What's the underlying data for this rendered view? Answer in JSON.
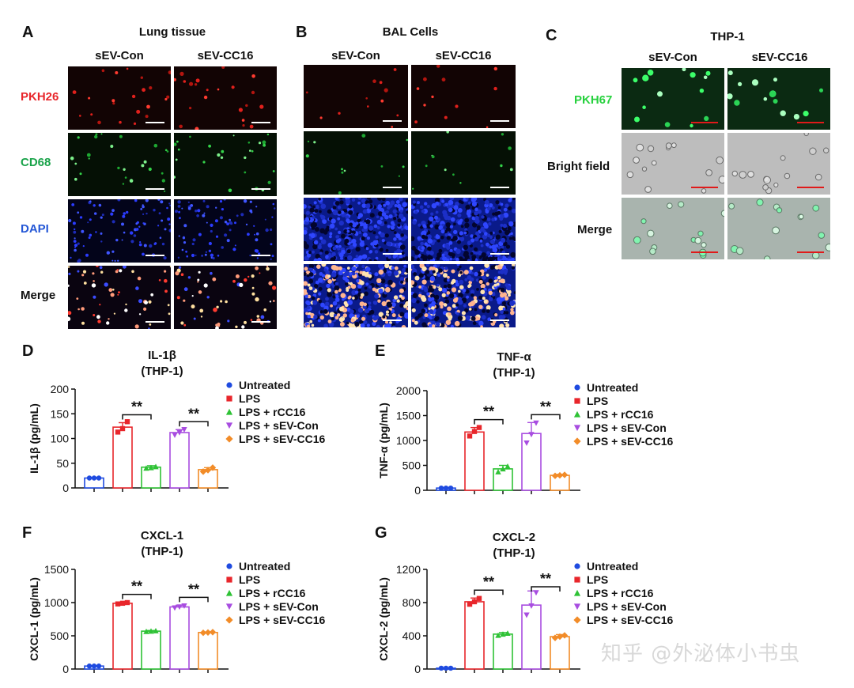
{
  "panels": {
    "A": {
      "letter": "A",
      "title": "Lung tissue",
      "columns": [
        "sEV-Con",
        "sEV-CC16"
      ],
      "rows": [
        {
          "label": "PKH26",
          "color": "#e8262b"
        },
        {
          "label": "CD68",
          "color": "#1aa34a"
        },
        {
          "label": "DAPI",
          "color": "#2457d6"
        },
        {
          "label": "Merge",
          "color": "#111111"
        }
      ]
    },
    "B": {
      "letter": "B",
      "title": "BAL Cells",
      "columns": [
        "sEV-Con",
        "sEV-CC16"
      ]
    },
    "C": {
      "letter": "C",
      "title": "THP-1",
      "columns": [
        "sEV-Con",
        "sEV-CC16"
      ],
      "rows": [
        {
          "label": "PKH67",
          "color": "#27d13e"
        },
        {
          "label": "Bright field",
          "color": "#111111"
        },
        {
          "label": "Merge",
          "color": "#111111"
        }
      ]
    }
  },
  "legend": {
    "groups": [
      {
        "name": "Untreated",
        "color": "#1f4be0",
        "marker": "circle"
      },
      {
        "name": "LPS",
        "color": "#e8262b",
        "marker": "square"
      },
      {
        "name": "LPS + rCC16",
        "color": "#2ec235",
        "marker": "triangle-up"
      },
      {
        "name": "LPS + sEV-Con",
        "color": "#a84de0",
        "marker": "triangle-down"
      },
      {
        "name": "LPS + sEV-CC16",
        "color": "#f28c28",
        "marker": "diamond"
      }
    ]
  },
  "significance_label": "**",
  "watermark": "知乎 @外泌体小书虫",
  "chart_data": [
    {
      "panel": "D",
      "type": "bar",
      "title": "IL-1β",
      "subtitle": "(THP-1)",
      "ylabel": "IL-1β (pg/mL)",
      "ylim": [
        0,
        200
      ],
      "yticks": [
        0,
        50,
        100,
        150,
        200
      ],
      "categories": [
        "Untreated",
        "LPS",
        "LPS + rCC16",
        "LPS + sEV-Con",
        "LPS + sEV-CC16"
      ],
      "values": [
        20,
        123,
        42,
        112,
        37
      ],
      "errors": [
        1,
        9,
        3,
        6,
        4
      ],
      "points": [
        [
          20,
          20,
          20
        ],
        [
          113,
          120,
          134
        ],
        [
          40,
          41,
          43
        ],
        [
          107,
          112,
          118
        ],
        [
          33,
          36,
          41
        ]
      ],
      "significance": [
        [
          1,
          2
        ],
        [
          3,
          4
        ]
      ]
    },
    {
      "panel": "E",
      "type": "bar",
      "title": "TNF-α",
      "subtitle": "(THP-1)",
      "ylabel": "TNF-α (pg/mL)",
      "ylim": [
        0,
        2000
      ],
      "yticks": [
        0,
        500,
        1000,
        1500,
        2000
      ],
      "categories": [
        "Untreated",
        "LPS",
        "LPS + rCC16",
        "LPS + sEV-Con",
        "LPS + sEV-CC16"
      ],
      "values": [
        45,
        1170,
        430,
        1140,
        300
      ],
      "errors": [
        5,
        90,
        70,
        220,
        20
      ],
      "points": [
        [
          45,
          45,
          45
        ],
        [
          1090,
          1180,
          1260
        ],
        [
          370,
          430,
          480
        ],
        [
          950,
          1120,
          1350
        ],
        [
          290,
          300,
          310
        ]
      ],
      "significance": [
        [
          1,
          2
        ],
        [
          3,
          4
        ]
      ]
    },
    {
      "panel": "F",
      "type": "bar",
      "title": "CXCL-1",
      "subtitle": "(THP-1)",
      "ylabel": "CXCL-1 (pg/mL)",
      "ylim": [
        0,
        1500
      ],
      "yticks": [
        0,
        500,
        1000,
        1500
      ],
      "categories": [
        "Untreated",
        "LPS",
        "LPS + rCC16",
        "LPS + sEV-Con",
        "LPS + sEV-CC16"
      ],
      "values": [
        45,
        990,
        570,
        935,
        550
      ],
      "errors": [
        5,
        15,
        10,
        25,
        8
      ],
      "points": [
        [
          45,
          45,
          45
        ],
        [
          980,
          990,
          1000
        ],
        [
          565,
          570,
          575
        ],
        [
          920,
          935,
          950
        ],
        [
          545,
          550,
          555
        ]
      ],
      "significance": [
        [
          1,
          2
        ],
        [
          3,
          4
        ]
      ]
    },
    {
      "panel": "G",
      "type": "bar",
      "title": "CXCL-2",
      "subtitle": "(THP-1)",
      "ylabel": "CXCL-2 (pg/mL)",
      "ylim": [
        0,
        1200
      ],
      "yticks": [
        0,
        400,
        800,
        1200
      ],
      "categories": [
        "Untreated",
        "LPS",
        "LPS + rCC16",
        "LPS + sEV-Con",
        "LPS + sEV-CC16"
      ],
      "values": [
        10,
        810,
        420,
        770,
        390
      ],
      "errors": [
        2,
        45,
        20,
        170,
        25
      ],
      "points": [
        [
          10,
          10,
          10
        ],
        [
          780,
          810,
          850
        ],
        [
          405,
          420,
          430
        ],
        [
          650,
          760,
          920
        ],
        [
          375,
          390,
          405
        ]
      ],
      "significance": [
        [
          1,
          2
        ],
        [
          3,
          4
        ]
      ]
    }
  ]
}
